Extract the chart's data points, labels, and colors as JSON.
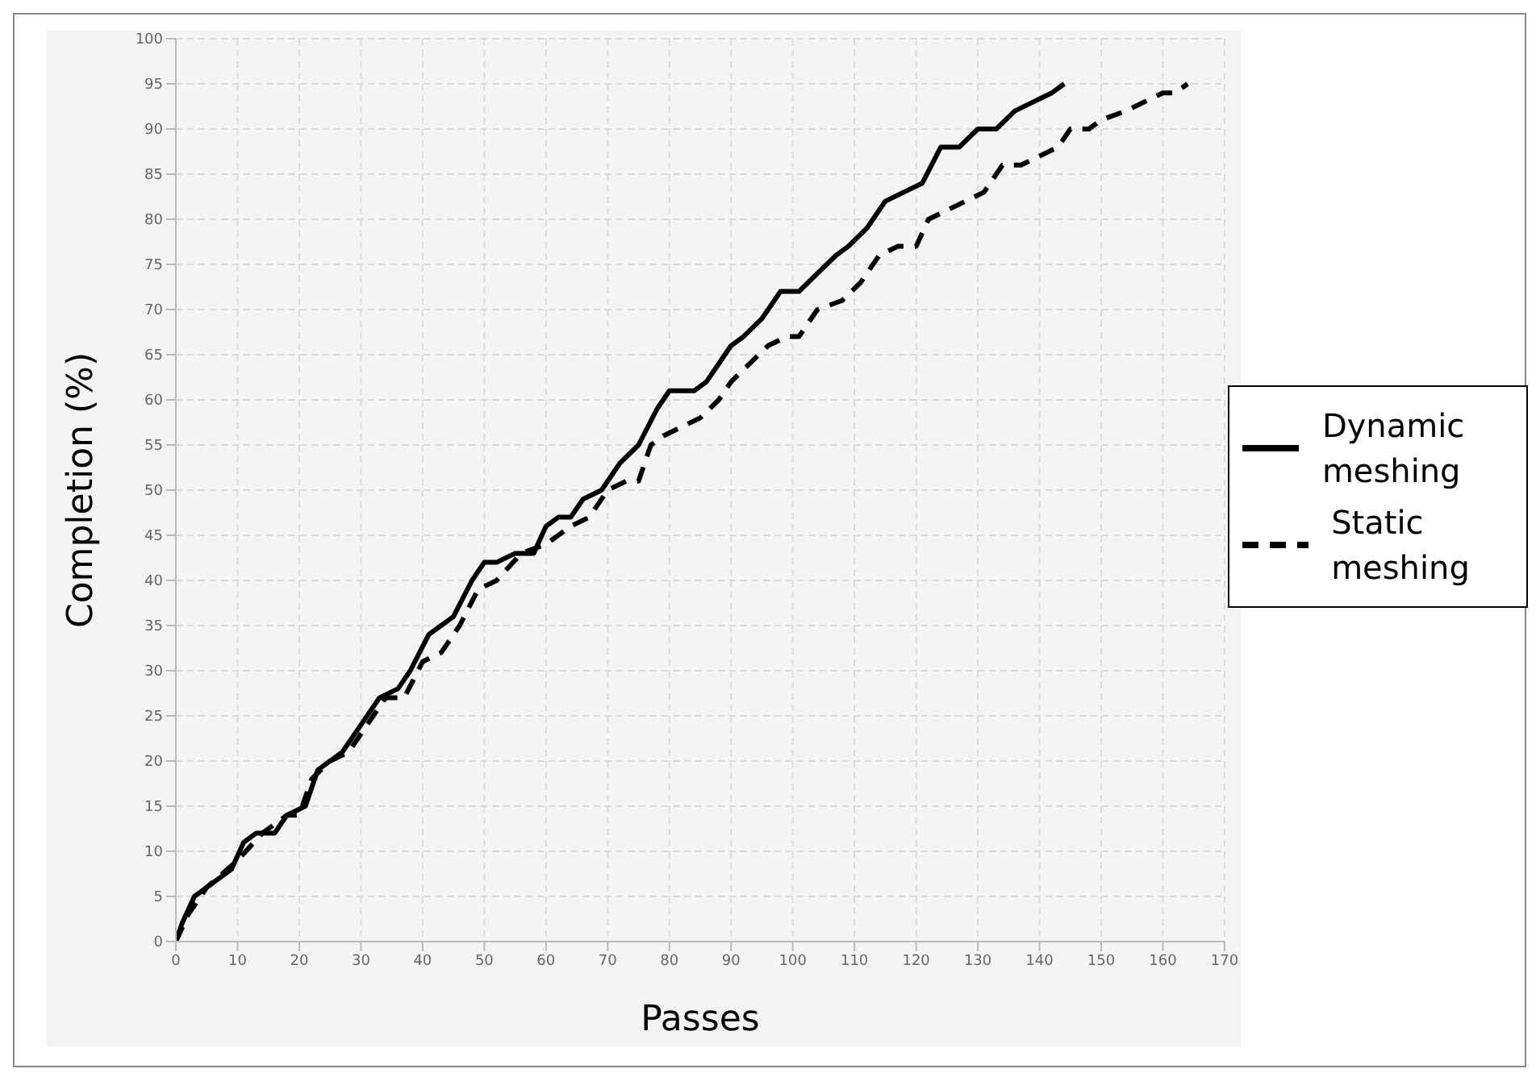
{
  "chart_data": {
    "type": "line",
    "xlabel": "Passes",
    "ylabel": "Completion (%)",
    "xlim": [
      0,
      170
    ],
    "xticks": [
      0,
      10,
      20,
      30,
      40,
      50,
      60,
      70,
      80,
      90,
      100,
      110,
      120,
      130,
      140,
      150,
      160,
      170
    ],
    "ylim": [
      0,
      100
    ],
    "yticks": [
      0,
      5,
      10,
      15,
      20,
      25,
      30,
      35,
      40,
      45,
      50,
      55,
      60,
      65,
      70,
      75,
      80,
      85,
      90,
      95,
      100
    ],
    "grid": true,
    "legend": "right",
    "marker": "none",
    "series": [
      {
        "name": "Dynamic meshing",
        "color": "#000000",
        "line_style": "solid",
        "x": [
          0,
          1,
          3,
          5,
          7,
          9,
          11,
          13,
          16,
          18,
          21,
          23,
          27,
          29,
          33,
          36,
          38,
          41,
          43,
          45,
          48,
          50,
          52,
          55,
          58,
          60,
          62,
          64,
          66,
          69,
          72,
          75,
          78,
          80,
          84,
          86,
          88,
          90,
          92,
          95,
          98,
          101,
          104,
          107,
          109,
          112,
          115,
          118,
          121,
          124,
          127,
          130,
          133,
          136,
          139,
          142,
          144
        ],
        "values": [
          0,
          2,
          5,
          6,
          7,
          8,
          11,
          12,
          12,
          14,
          15,
          19,
          21,
          23,
          27,
          28,
          30,
          34,
          35,
          36,
          40,
          42,
          42,
          43,
          43,
          46,
          47,
          47,
          49,
          50,
          53,
          55,
          59,
          61,
          61,
          62,
          64,
          66,
          67,
          69,
          72,
          72,
          74,
          76,
          77,
          79,
          82,
          83,
          84,
          88,
          88,
          90,
          90,
          92,
          93,
          94,
          95
        ]
      },
      {
        "name": "Static meshing",
        "color": "#000000",
        "line_style": "dashed",
        "x": [
          0,
          2,
          5,
          10,
          14,
          18,
          20,
          22,
          25,
          28,
          32,
          34,
          37,
          40,
          43,
          46,
          49,
          52,
          56,
          60,
          64,
          67,
          70,
          73,
          75,
          77,
          79,
          82,
          85,
          88,
          90,
          93,
          96,
          99,
          101,
          104,
          108,
          111,
          114,
          117,
          120,
          122,
          125,
          128,
          131,
          134,
          137,
          140,
          143,
          145,
          148,
          150,
          154,
          157,
          160,
          162,
          164
        ],
        "values": [
          0,
          3,
          6,
          9,
          12,
          14,
          14,
          18,
          20,
          21,
          25,
          27,
          27,
          31,
          32,
          35,
          39,
          40,
          43,
          44,
          46,
          47,
          50,
          51,
          51,
          55,
          56,
          57,
          58,
          60,
          62,
          64,
          66,
          67,
          67,
          70,
          71,
          73,
          76,
          77,
          77,
          80,
          81,
          82,
          83,
          86,
          86,
          87,
          88,
          90,
          90,
          91,
          92,
          93,
          94,
          94,
          95
        ]
      }
    ]
  }
}
